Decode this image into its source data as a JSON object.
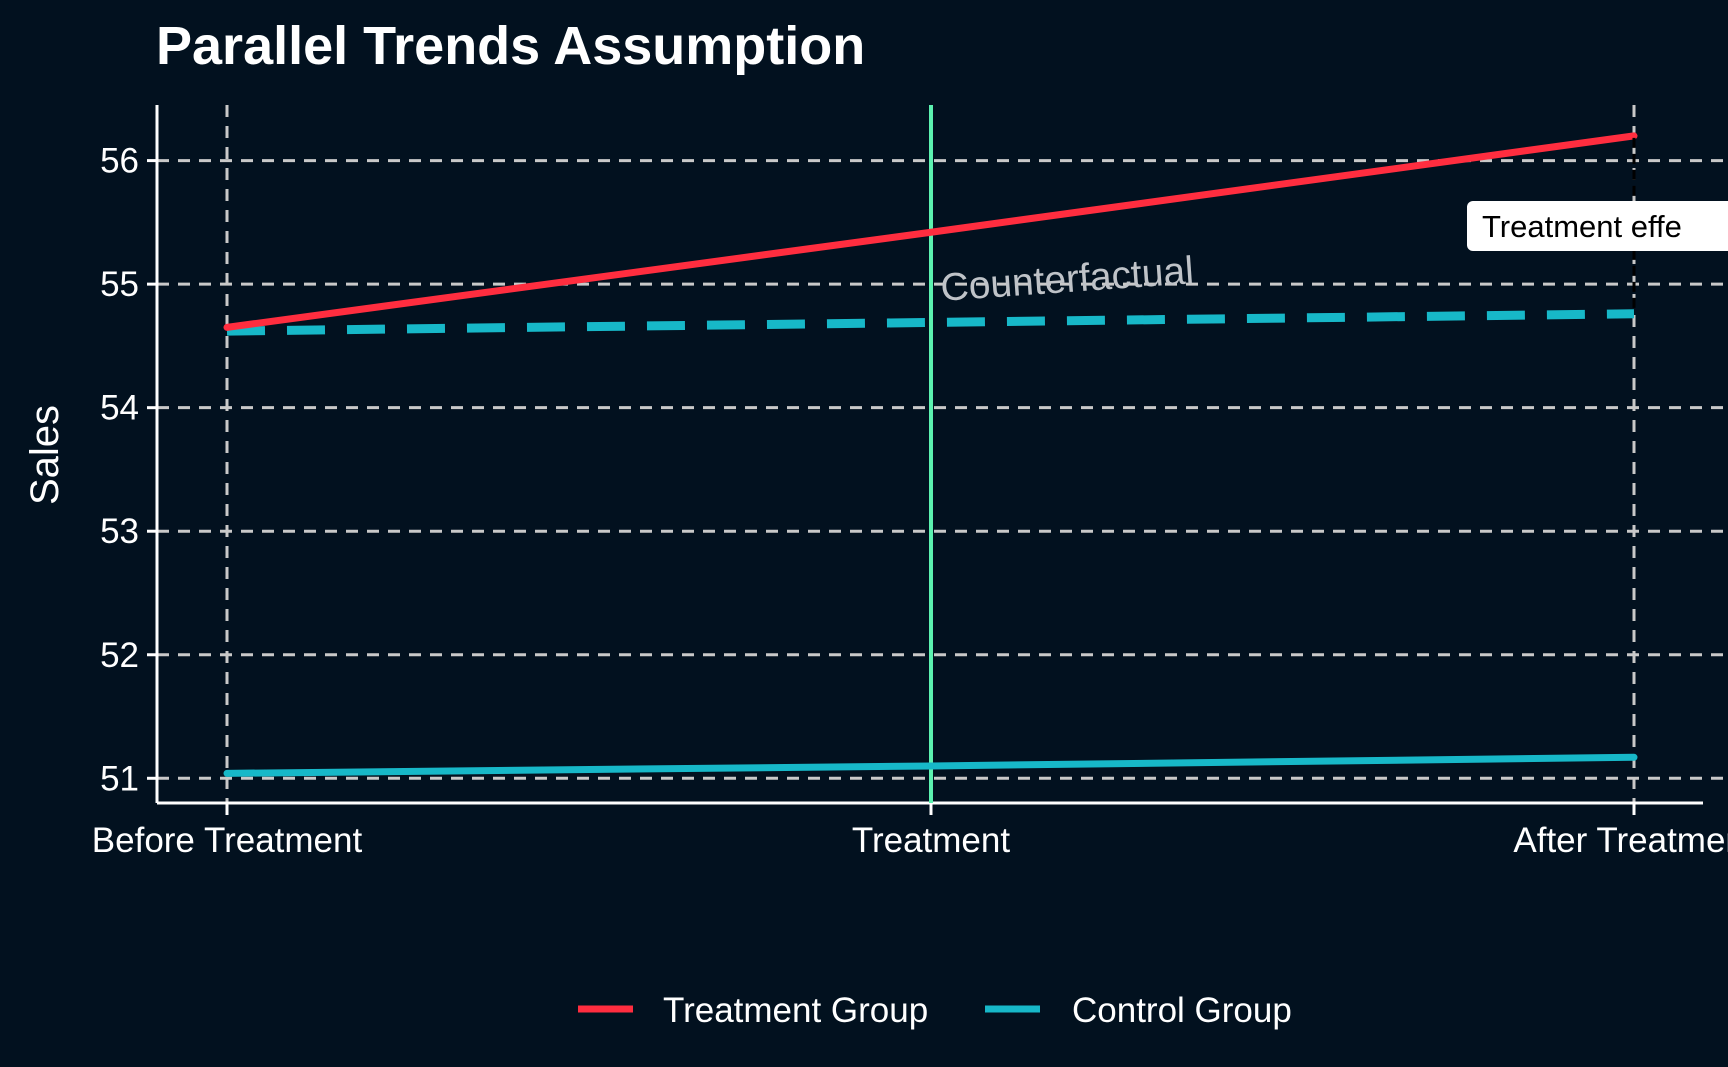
{
  "chart_data": {
    "type": "line",
    "title": "Parallel Trends Assumption",
    "xlabel": "",
    "ylabel": "Sales",
    "categories": [
      "Before Treatment",
      "Treatment",
      "After Treatment"
    ],
    "ylim": [
      50.8,
      56.45
    ],
    "yticks": [
      51,
      52,
      53,
      54,
      55,
      56
    ],
    "grid": true,
    "legend_position": "bottom",
    "series": [
      {
        "name": "Treatment Group",
        "values": [
          54.65,
          55.42,
          56.2
        ],
        "color": "#ff2d3f",
        "style": "solid"
      },
      {
        "name": "Control Group",
        "values": [
          51.04,
          51.1,
          51.17
        ],
        "color": "#17b8c8",
        "style": "solid"
      }
    ],
    "counterfactual": {
      "values": [
        54.62,
        54.69,
        54.76
      ],
      "color": "#17b8c8",
      "style": "dashed"
    },
    "treatment_line": {
      "at": "Treatment",
      "color": "#5cf2b0"
    },
    "annotations": {
      "counterfactual_label": "Counterfactual",
      "effect_label": "Treatment effe"
    },
    "colors": {
      "background": "#02111f",
      "grid": "#c9c9c9",
      "axis": "#ffffff"
    }
  }
}
